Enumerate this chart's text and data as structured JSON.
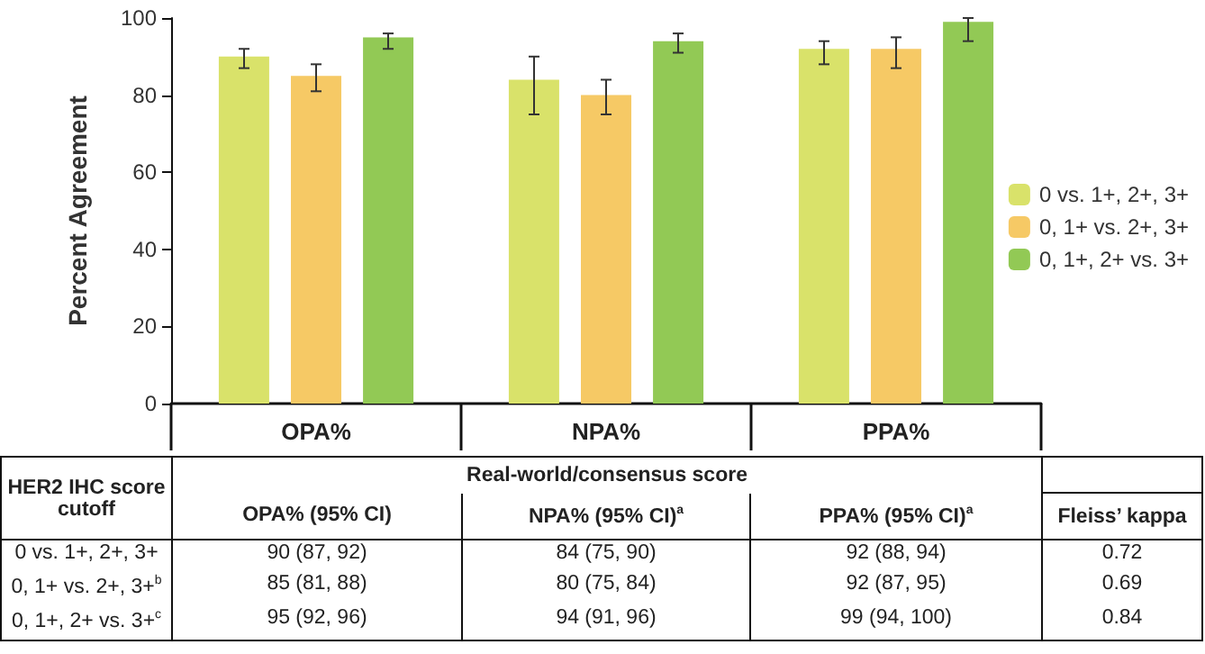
{
  "chart_data": {
    "type": "bar",
    "ylabel": "Percent Agreement",
    "categories": [
      "OPA%",
      "NPA%",
      "PPA%"
    ],
    "series": [
      {
        "name": "0 vs. 1+, 2+, 3+",
        "color": "#d9e26a",
        "values": [
          90,
          84,
          92
        ],
        "errors": [
          [
            87,
            92
          ],
          [
            75,
            90
          ],
          [
            88,
            94
          ]
        ],
        "value_labels": [
          "90 (87, 92)",
          "84 (75, 90)",
          "92 (88, 94)"
        ]
      },
      {
        "name": "0, 1+ vs. 2+, 3+",
        "color": "#f6c965",
        "values": [
          85,
          80,
          92
        ],
        "errors": [
          [
            81,
            88
          ],
          [
            75,
            84
          ],
          [
            87,
            95
          ]
        ],
        "value_labels": [
          "85 (81, 88)",
          "80 (75, 84)",
          "92 (87, 95)"
        ]
      },
      {
        "name": "0, 1+, 2+ vs. 3+",
        "color": "#92c955",
        "values": [
          95,
          94,
          99
        ],
        "errors": [
          [
            92,
            96
          ],
          [
            91,
            96
          ],
          [
            94,
            100
          ]
        ],
        "value_labels": [
          "95 (92, 96)",
          "94 (91, 96)",
          "99 (94, 100)"
        ]
      }
    ],
    "ylim": [
      0,
      100
    ],
    "yticks": [
      0,
      20,
      40,
      60,
      80,
      100
    ],
    "grid": false,
    "legend": "right",
    "annotations": [
      "HER2 IHC score cutoff",
      "Real-world/consensus score",
      "OPA% (95% CI)",
      "NPA% (95% CI)$^{a}$",
      "PPA% (95% CI)$^{a}$",
      "Fleiss’ kappa",
      "0 vs. 1+, 2+, 3+",
      "0, 1+ vs. 2+, 3+$^{b}$",
      "0, 1+, 2+ vs. 3+$^{c}$",
      "0.72",
      "0.69",
      "0.84"
    ]
  }
}
